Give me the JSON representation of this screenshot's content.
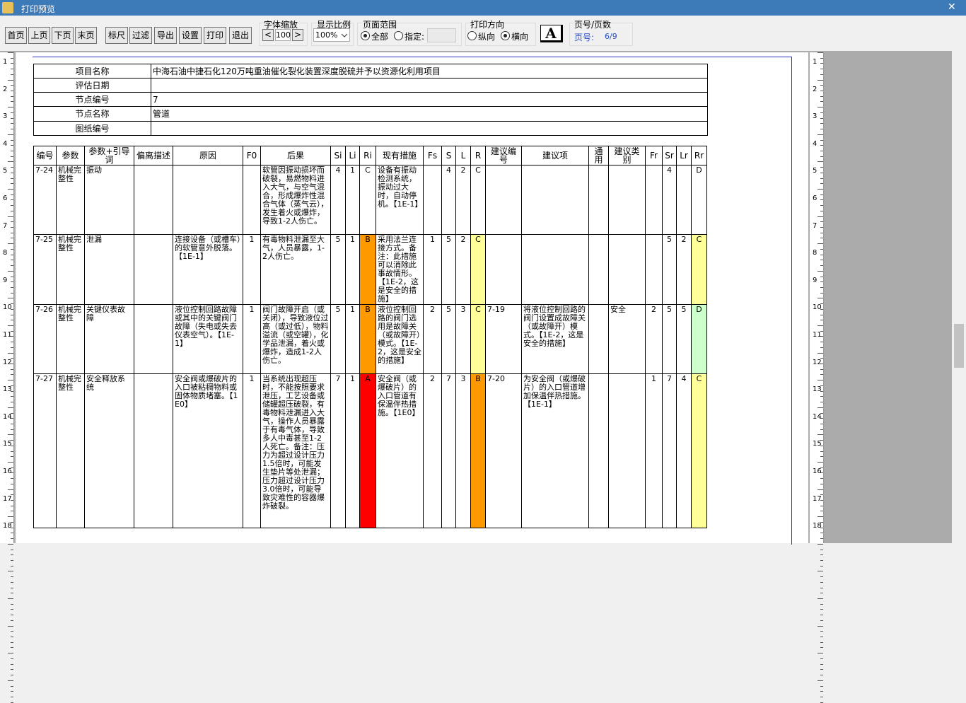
{
  "window": {
    "title": "打印预览",
    "close": "✕"
  },
  "toolbar": {
    "nav_buttons": [
      "首页",
      "上页",
      "下页",
      "末页"
    ],
    "action_buttons": [
      "标尺",
      "过滤",
      "导出",
      "设置",
      "打印",
      "退出"
    ],
    "font_zoom": {
      "label": "字体缩放",
      "decrease": "<",
      "value": "100",
      "increase": ">"
    },
    "display_ratio": {
      "label": "显示比例",
      "value": "100%"
    },
    "page_range": {
      "label": "页面范围",
      "all": "全部",
      "specified": "指定:"
    },
    "orientation": {
      "label": "打印方向",
      "portrait": "纵向",
      "landscape": "横向",
      "icon": "A"
    },
    "page_info": {
      "label": "页号/页数",
      "page_label": "页号:",
      "value": "6/9"
    }
  },
  "ruler": {
    "labels": [
      1,
      2,
      3,
      4,
      5,
      6,
      7,
      8,
      9,
      10,
      11,
      12,
      13,
      14,
      15,
      16,
      17,
      18
    ]
  },
  "info_table": {
    "rows": [
      [
        "项目名称",
        "中海石油中捷石化120万吨重油催化裂化装置深度脱硫并予以资源化利用项目"
      ],
      [
        "评估日期",
        null
      ],
      [
        "节点编号",
        "7"
      ],
      [
        "节点名称",
        "管道"
      ],
      [
        "图纸编号",
        null
      ]
    ]
  },
  "table": {
    "header": [
      "编号",
      "参数",
      "参数+引导词",
      "偏离描述",
      "原因",
      "F0",
      "后果",
      "Si",
      "Li",
      "Ri",
      "现有措施",
      "Fs",
      "S",
      "L",
      "R",
      "建议编号",
      "建议项",
      "通用",
      "建议类别",
      "Fr",
      "Sr",
      "Lr",
      "Rr"
    ],
    "rows": [
      [
        "7-24",
        "机械完整性",
        "振动",
        null,
        null,
        null,
        "软管因振动损坏而破裂，易燃物料进入大气，与空气混合，形成爆炸性混合气体（蒸气云），发生着火或爆炸，导致1-2人伤亡。",
        "4",
        "1",
        "C",
        "设备有振动检测系统，振动过大时，自动停机。【1E-1】",
        null,
        "4",
        "2",
        "C",
        null,
        null,
        null,
        null,
        null,
        "4",
        null,
        "D"
      ],
      [
        "7-25",
        "机械完整性",
        "泄漏",
        null,
        "连接设备（或槽车）的软管意外脱落。【1E-1】",
        "1",
        "有毒物料泄漏至大气，人员暴露，1-2人伤亡。",
        "5",
        "1",
        "B",
        "采用法兰连接方式。备注：此措施可以消除此事故情形。【1E-2，这是安全的措施】",
        "1",
        "5",
        "2",
        "C",
        null,
        null,
        null,
        null,
        null,
        "5",
        "2",
        "C"
      ],
      [
        "7-26",
        "机械完整性",
        "关键仪表故障",
        null,
        "液位控制回路故障或其中的关键阀门故障（失电或失去仪表空气）。【1E-1】",
        "1",
        "阀门故障开启（或关闭），导致液位过高（或过低），物料溢流（或空罐），化学品泄漏，着火或爆炸，造成1-2人伤亡。",
        "5",
        "1",
        "B",
        "液位控制回路的阀门选用是故障关（或故障开）模式。【1E-2，这是安全的措施】",
        "2",
        "5",
        "3",
        "C",
        "7-19",
        "将液位控制回路的阀门设置成故障关（或故障开）模式。【1E-2，这是安全的措施】",
        null,
        "安全",
        "2",
        "5",
        "5",
        "D"
      ],
      [
        "7-27",
        "机械完整性",
        "安全释放系统",
        null,
        "安全阀或爆破片的入口被粘稠物料或固体物质堵塞。【1E0】",
        "1",
        "当系统出现超压时，不能按照要求泄压，工艺设备或储罐超压破裂，有毒物料泄漏进入大气，操作人员暴露于有毒气体，导致多人中毒甚至1-2人死亡。备注：压力为超过设计压力1.5倍时，可能发生垫片等处泄漏；压力超过设计压力3.0倍时，可能导致灾难性的容器爆炸破裂。",
        "7",
        "1",
        "A",
        "安全阀（或爆破片）的入口管道有保温伴热措施。【1E0】",
        "2",
        "7",
        "3",
        "B",
        "7-20",
        "为安全阀（或爆破片）的入口管道增加保温伴热措施。【1E-1】",
        null,
        null,
        "1",
        "7",
        "4",
        "C"
      ]
    ]
  }
}
